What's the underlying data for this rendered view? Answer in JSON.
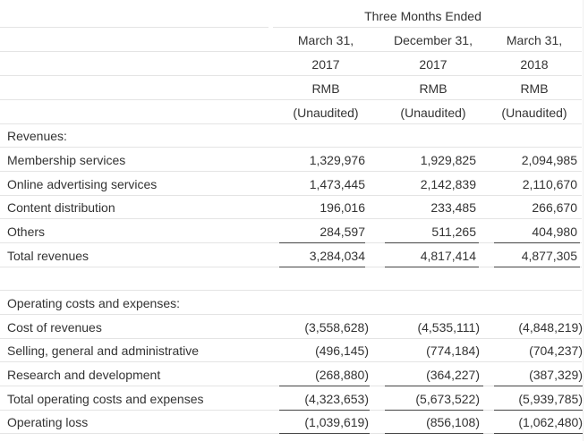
{
  "header": {
    "period_title": "Three Months Ended",
    "columns": [
      {
        "date": "March 31,",
        "year": "2017",
        "currency": "RMB",
        "status": "(Unaudited)"
      },
      {
        "date": "December 31,",
        "year": "2017",
        "currency": "RMB",
        "status": "(Unaudited)"
      },
      {
        "date": "March 31,",
        "year": "2018",
        "currency": "RMB",
        "status": "(Unaudited)"
      }
    ]
  },
  "revenues": {
    "section_label": "Revenues:",
    "rows": [
      {
        "label": "Membership services",
        "values": [
          "1,329,976",
          "1,929,825",
          "2,094,985"
        ]
      },
      {
        "label": "Online advertising services",
        "values": [
          "1,473,445",
          "2,142,839",
          "2,110,670"
        ]
      },
      {
        "label": "Content distribution",
        "values": [
          "196,016",
          "233,485",
          "266,670"
        ]
      },
      {
        "label": "Others",
        "values": [
          "284,597",
          "511,265",
          "404,980"
        ]
      },
      {
        "label": "Total revenues",
        "values": [
          "3,284,034",
          "4,817,414",
          "4,877,305"
        ]
      }
    ]
  },
  "costs": {
    "section_label": "Operating costs and expenses:",
    "rows": [
      {
        "label": "Cost of revenues",
        "values": [
          "(3,558,628)",
          "(4,535,111)",
          "(4,848,219)"
        ]
      },
      {
        "label": "Selling, general and administrative",
        "values": [
          "(496,145)",
          "(774,184)",
          "(704,237)"
        ]
      },
      {
        "label": "Research and development",
        "values": [
          "(268,880)",
          "(364,227)",
          "(387,329)"
        ]
      },
      {
        "label": "Total operating costs and expenses",
        "values": [
          "(4,323,653)",
          "(5,673,522)",
          "(5,939,785)"
        ]
      },
      {
        "label": "Operating loss",
        "values": [
          "(1,039,619)",
          "(856,108)",
          "(1,062,480)"
        ]
      }
    ]
  }
}
